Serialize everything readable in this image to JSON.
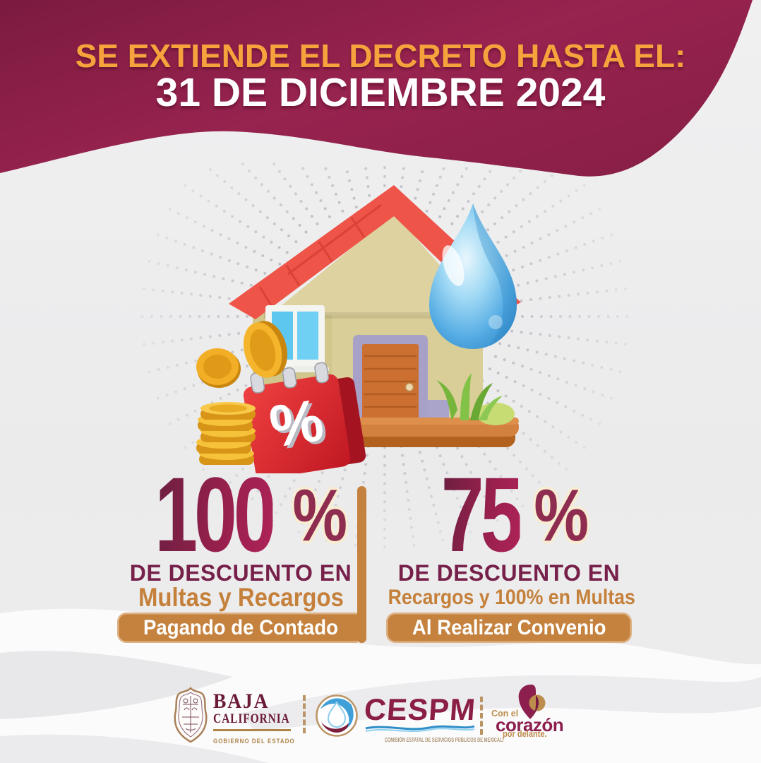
{
  "header": {
    "line1": "SE EXTIENDE EL DECRETO HASTA EL:",
    "line2": "31 DE DICIEMBRE 2024"
  },
  "offers": {
    "left": {
      "number": "100",
      "sign": "%",
      "desc": "DE DESCUENTO EN",
      "target": "Multas y Recargos",
      "badge": "Pagando de Contado"
    },
    "right": {
      "number": "75",
      "sign": "%",
      "desc": "DE DESCUENTO EN",
      "target": "Recargos y 100% en Multas",
      "badge": "Al Realizar Convenio"
    }
  },
  "illustration": {
    "calendar_symbol": "%",
    "icons": [
      "house-icon",
      "water-drop-icon",
      "gold-coins-icon",
      "discount-calendar-icon",
      "grass-icon",
      "wooden-platform-icon",
      "radial-dots-pattern"
    ]
  },
  "footer": {
    "baja": {
      "line1": "BAJA",
      "line2": "CALIFORNIA",
      "line3": "GOBIERNO DEL ESTADO"
    },
    "cespm": {
      "name": "CESPM",
      "caption": "COMISIÓN ESTATAL DE SERVICIOS PÚBLICOS DE MEXICALI"
    },
    "corazon": {
      "line1": "Con el",
      "line2": "corazón",
      "line3": "por delante."
    }
  },
  "colors": {
    "maroon": "#8c2148",
    "dark_maroon": "#76204a",
    "orange_text": "#f6a23d",
    "tan": "#c5823e",
    "cream_outline": "#f8ecd2",
    "number_gradient_start": "#6f1f42",
    "number_gradient_end": "#ab2257"
  }
}
